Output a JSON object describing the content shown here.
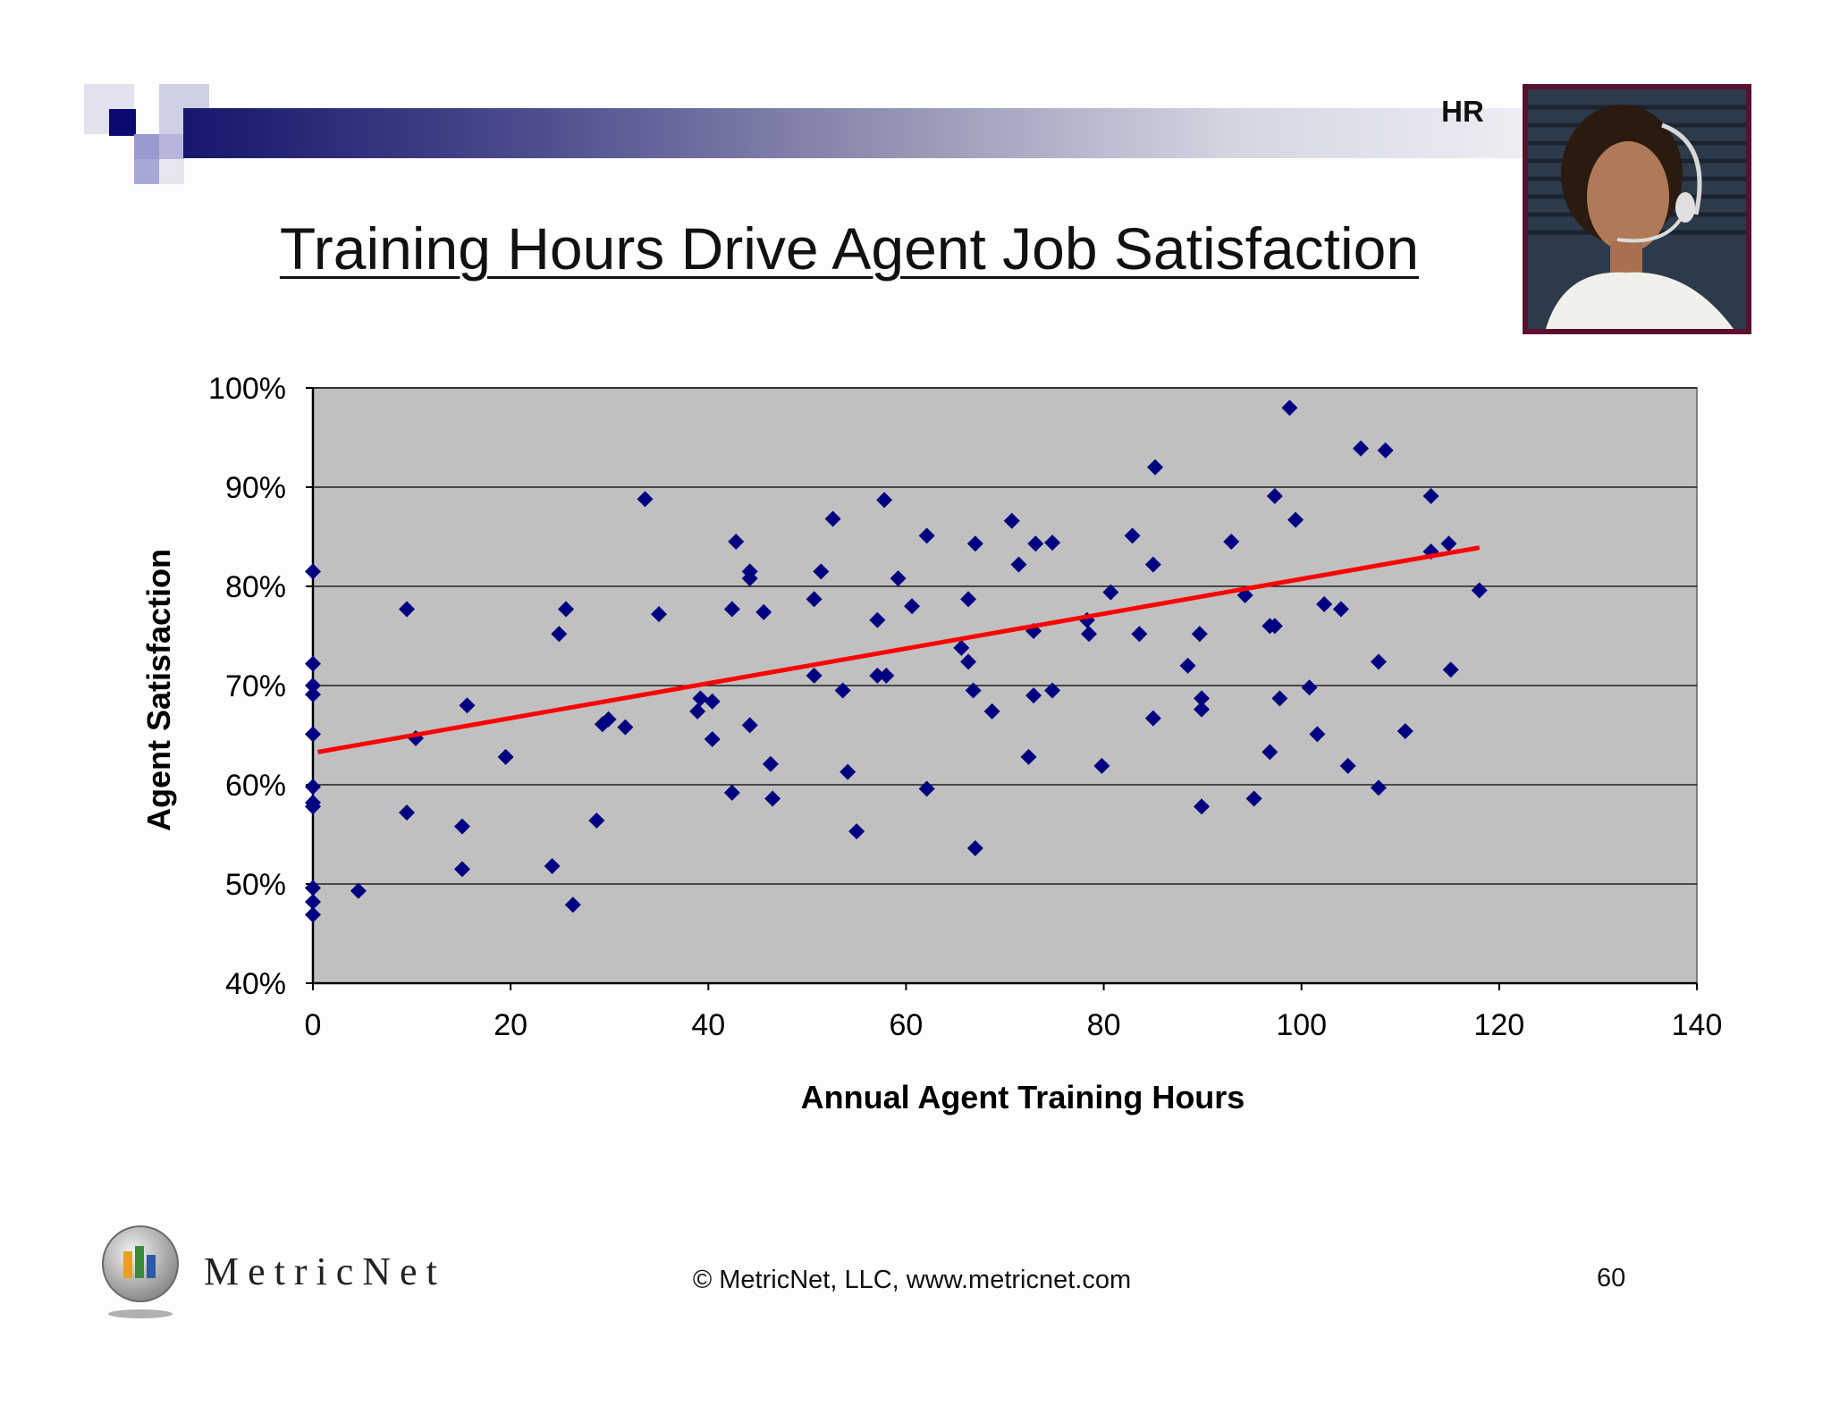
{
  "slide": {
    "section_tag": "HR",
    "title": "Training Hours Drive Agent Job Satisfaction",
    "footer": {
      "brand": "MetricNet",
      "copyright": "© MetricNet, LLC, www.metricnet.com",
      "page_number": "60"
    },
    "photo": "headset-agent-photo",
    "colors": {
      "brand_navy": "#16166c",
      "plot_background": "#c0c0c0",
      "marker": "#000080",
      "trendline": "#ff0000",
      "photo_frame": "#5c1030"
    }
  },
  "chart_data": {
    "type": "scatter",
    "title": "",
    "xlabel": "Annual Agent Training Hours",
    "ylabel": "Agent Satisfaction",
    "xlim": [
      0,
      140
    ],
    "ylim": [
      40,
      100
    ],
    "x_ticks": [
      "0",
      "20",
      "40",
      "60",
      "80",
      "100",
      "120",
      "140"
    ],
    "y_ticks": [
      "40%",
      "50%",
      "60%",
      "70%",
      "80%",
      "90%",
      "100%"
    ],
    "grid": "horizontal",
    "legend": "none",
    "marker": "diamond",
    "series": [
      {
        "points": [
          [
            0,
            81.5
          ],
          [
            0,
            72.2
          ],
          [
            0,
            70.0
          ],
          [
            0,
            69.1
          ],
          [
            0,
            65.1
          ],
          [
            0,
            59.8
          ],
          [
            0,
            58.2
          ],
          [
            0,
            57.8
          ],
          [
            0,
            49.6
          ],
          [
            0,
            48.2
          ],
          [
            0,
            46.9
          ],
          [
            4.6,
            49.3
          ],
          [
            9.5,
            77.7
          ],
          [
            9.5,
            57.2
          ],
          [
            10.4,
            64.7
          ],
          [
            15.1,
            55.8
          ],
          [
            15.1,
            51.5
          ],
          [
            15.6,
            68.0
          ],
          [
            19.5,
            62.8
          ],
          [
            24.2,
            51.8
          ],
          [
            24.9,
            75.2
          ],
          [
            25.6,
            77.7
          ],
          [
            26.3,
            47.9
          ],
          [
            28.7,
            56.4
          ],
          [
            29.3,
            66.1
          ],
          [
            29.9,
            66.6
          ],
          [
            31.6,
            65.8
          ],
          [
            33.6,
            88.8
          ],
          [
            35.0,
            77.2
          ],
          [
            38.9,
            67.4
          ],
          [
            39.2,
            68.7
          ],
          [
            40.4,
            68.4
          ],
          [
            40.4,
            64.6
          ],
          [
            42.4,
            77.7
          ],
          [
            42.4,
            59.2
          ],
          [
            42.8,
            84.5
          ],
          [
            44.2,
            81.5
          ],
          [
            44.2,
            80.8
          ],
          [
            44.2,
            66.0
          ],
          [
            45.6,
            77.4
          ],
          [
            46.3,
            62.1
          ],
          [
            46.5,
            58.6
          ],
          [
            50.7,
            78.7
          ],
          [
            50.7,
            71.0
          ],
          [
            51.4,
            81.5
          ],
          [
            52.6,
            86.8
          ],
          [
            53.6,
            69.5
          ],
          [
            54.1,
            61.3
          ],
          [
            55.0,
            55.3
          ],
          [
            57.1,
            76.6
          ],
          [
            57.1,
            71.0
          ],
          [
            57.8,
            88.7
          ],
          [
            58.0,
            71.0
          ],
          [
            59.2,
            80.8
          ],
          [
            60.6,
            78.0
          ],
          [
            62.1,
            85.1
          ],
          [
            62.1,
            59.6
          ],
          [
            65.6,
            73.8
          ],
          [
            66.3,
            78.7
          ],
          [
            66.3,
            72.4
          ],
          [
            66.8,
            69.5
          ],
          [
            67.0,
            84.3
          ],
          [
            67.0,
            53.6
          ],
          [
            68.7,
            67.4
          ],
          [
            70.7,
            86.6
          ],
          [
            71.4,
            82.2
          ],
          [
            72.4,
            62.8
          ],
          [
            72.9,
            75.5
          ],
          [
            72.9,
            69.0
          ],
          [
            73.1,
            84.3
          ],
          [
            74.8,
            84.4
          ],
          [
            74.8,
            69.5
          ],
          [
            78.3,
            76.6
          ],
          [
            78.5,
            75.2
          ],
          [
            79.8,
            61.9
          ],
          [
            80.7,
            79.4
          ],
          [
            82.9,
            85.1
          ],
          [
            83.6,
            75.2
          ],
          [
            85.0,
            82.2
          ],
          [
            85.0,
            66.7
          ],
          [
            85.2,
            92.0
          ],
          [
            88.5,
            72.0
          ],
          [
            89.7,
            75.2
          ],
          [
            89.9,
            68.7
          ],
          [
            89.9,
            67.6
          ],
          [
            89.9,
            57.8
          ],
          [
            92.9,
            84.5
          ],
          [
            94.3,
            79.1
          ],
          [
            95.2,
            58.6
          ],
          [
            96.8,
            76.0
          ],
          [
            96.8,
            63.3
          ],
          [
            97.3,
            89.1
          ],
          [
            97.3,
            76.0
          ],
          [
            97.8,
            68.7
          ],
          [
            98.8,
            98.0
          ],
          [
            99.4,
            86.7
          ],
          [
            100.8,
            69.8
          ],
          [
            101.6,
            65.1
          ],
          [
            102.3,
            78.2
          ],
          [
            104.0,
            77.7
          ],
          [
            104.7,
            61.9
          ],
          [
            106.0,
            93.9
          ],
          [
            107.8,
            72.4
          ],
          [
            107.8,
            59.7
          ],
          [
            108.5,
            93.7
          ],
          [
            110.5,
            65.4
          ],
          [
            113.1,
            89.1
          ],
          [
            113.1,
            83.5
          ],
          [
            114.9,
            84.3
          ],
          [
            115.1,
            71.6
          ],
          [
            118.0,
            79.6
          ]
        ]
      }
    ],
    "trendline": {
      "color": "#ff0000",
      "from": [
        0.5,
        63.3
      ],
      "to": [
        118.0,
        83.9
      ]
    }
  }
}
